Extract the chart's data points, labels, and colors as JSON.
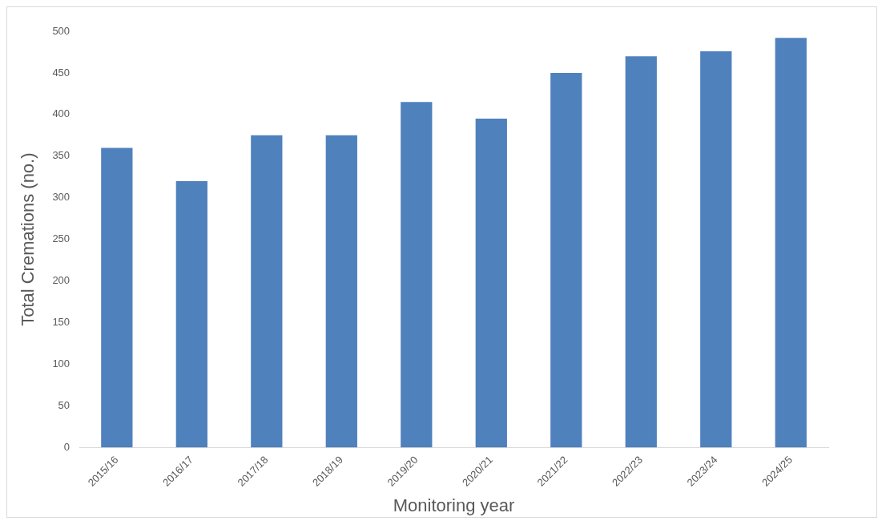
{
  "chart_data": {
    "type": "bar",
    "xlabel": "Monitoring year",
    "ylabel": "Total Cremations (no.)",
    "categories": [
      "2015/16",
      "2016/17",
      "2017/18",
      "2018/19",
      "2019/20",
      "2020/21",
      "2021/22",
      "2022/23",
      "2023/24",
      "2024/25"
    ],
    "values": [
      360,
      320,
      375,
      375,
      415,
      395,
      450,
      470,
      476,
      492
    ],
    "color": "#4f81bd",
    "ylim": [
      0,
      500
    ],
    "yticks": [
      0,
      50,
      100,
      150,
      200,
      250,
      300,
      350,
      400,
      450,
      500
    ],
    "grid": false,
    "legend": false
  }
}
